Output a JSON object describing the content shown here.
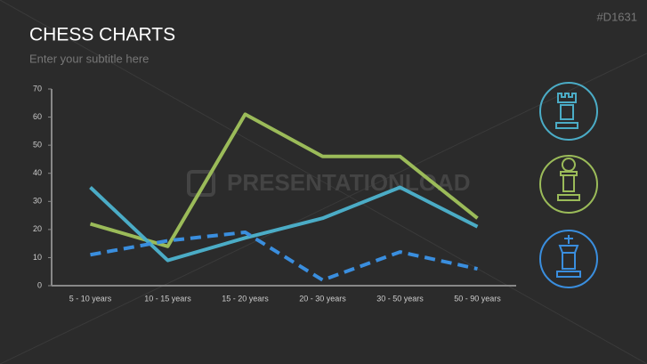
{
  "slide": {
    "id": "#D1631",
    "title": "CHESS CHARTS",
    "subtitle": "Enter your subtitle here",
    "watermark": "PRESENTATIONLOAD"
  },
  "chart_data": {
    "type": "line",
    "categories": [
      "5 - 10 years",
      "10 - 15 years",
      "15 - 20 years",
      "20 - 30 years",
      "30 - 50 years",
      "50 - 90 years"
    ],
    "series": [
      {
        "color": "#9bbb59",
        "line_style": "solid",
        "values": [
          22,
          14,
          61,
          46,
          46,
          24
        ]
      },
      {
        "color": "#4bacc6",
        "line_style": "solid",
        "values": [
          35,
          9,
          17,
          24,
          35,
          21
        ]
      },
      {
        "color": "#3a8ede",
        "line_style": "dashed",
        "values": [
          11,
          16,
          19,
          2,
          12,
          6
        ]
      }
    ],
    "ylim": [
      0,
      70
    ],
    "yticks": [
      0,
      10,
      20,
      30,
      40,
      50,
      60,
      70
    ]
  }
}
